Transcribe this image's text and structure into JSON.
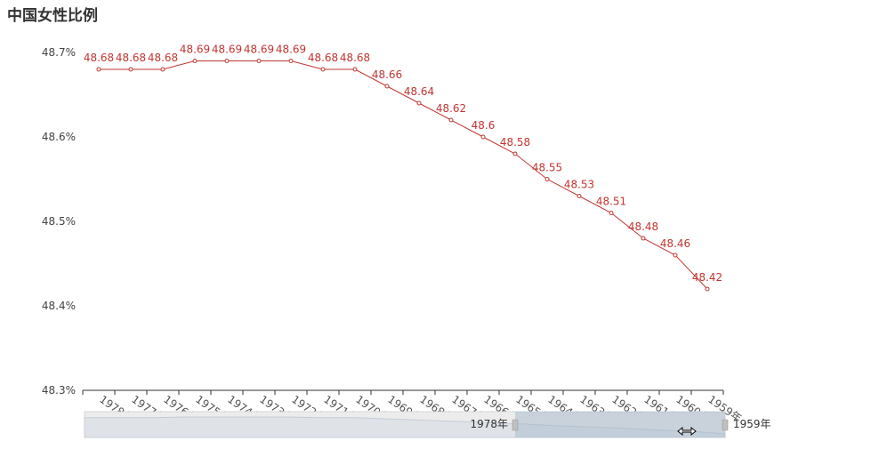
{
  "title": "中国女性比例",
  "chart_data": {
    "type": "line",
    "title": "中国女性比例",
    "categories": [
      "1978年",
      "1977年",
      "1976年",
      "1975年",
      "1974年",
      "1973年",
      "1972年",
      "1971年",
      "1970年",
      "1969年",
      "1968年",
      "1967年",
      "1966年",
      "1965年",
      "1964年",
      "1963年",
      "1962年",
      "1961年",
      "1960年",
      "1959年"
    ],
    "series": [
      {
        "values": [
          48.68,
          48.68,
          48.68,
          48.69,
          48.69,
          48.69,
          48.69,
          48.68,
          48.68,
          48.66,
          48.64,
          48.62,
          48.6,
          48.58,
          48.55,
          48.53,
          48.51,
          48.48,
          48.46,
          48.42
        ],
        "labels": [
          "48.68",
          "48.68",
          "48.68",
          "48.69",
          "48.69",
          "48.69",
          "48.69",
          "48.68",
          "48.68",
          "48.66",
          "48.64",
          "48.62",
          "48.6",
          "48.58",
          "48.55",
          "48.53",
          "48.51",
          "48.48",
          "48.46",
          "48.42"
        ]
      }
    ],
    "ylim": [
      48.3,
      48.7
    ],
    "yticks": [
      "48.3%",
      "48.4%",
      "48.5%",
      "48.6%",
      "48.7%"
    ],
    "grid": false,
    "color": "#c23531",
    "datazoom": {
      "start_label": "1978年",
      "end_label": "1959年"
    }
  }
}
